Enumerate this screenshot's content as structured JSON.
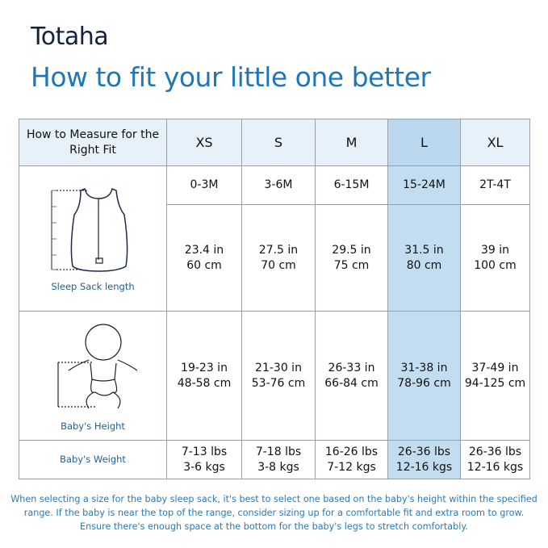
{
  "brand": "Totaha",
  "title": "How to fit your little one better",
  "table": {
    "header": [
      "How to Measure for the Right Fit",
      "XS",
      "S",
      "M",
      "L",
      "XL"
    ],
    "highlight_column": "L",
    "colors": {
      "header_bg": "#e6f1f9",
      "highlight": "#c3ddf0",
      "title": "#1f77b8"
    },
    "rows": [
      {
        "label": "",
        "cells": [
          [
            "0-3M"
          ],
          [
            "3-6M"
          ],
          [
            "6-15M"
          ],
          [
            "15-24M"
          ],
          [
            "2T-4T"
          ]
        ]
      },
      {
        "label": "Sleep Sack length",
        "icon": "sleep-sack-icon",
        "cells": [
          [
            "23.4 in",
            "60 cm"
          ],
          [
            "27.5 in",
            "70 cm"
          ],
          [
            "29.5 in",
            "75 cm"
          ],
          [
            "31.5 in",
            "80 cm"
          ],
          [
            "39 in",
            "100 cm"
          ]
        ]
      },
      {
        "label": "Baby's Height",
        "icon": "baby-icon",
        "cells": [
          [
            "19-23 in",
            "48-58 cm"
          ],
          [
            "21-30 in",
            "53-76 cm"
          ],
          [
            "26-33 in",
            "66-84 cm"
          ],
          [
            "31-38 in",
            "78-96 cm"
          ],
          [
            "37-49 in",
            "94-125 cm"
          ]
        ]
      },
      {
        "label": "Baby's Weight",
        "cells": [
          [
            "7-13 lbs",
            "3-6 kgs"
          ],
          [
            "7-18 lbs",
            "3-8 kgs"
          ],
          [
            "16-26 lbs",
            "7-12 kgs"
          ],
          [
            "26-36 lbs",
            "12-16 kgs"
          ],
          [
            "26-36 lbs",
            "12-16 kgs"
          ]
        ]
      }
    ]
  },
  "footer": [
    "When selecting a size for the baby sleep sack, it's best to select one based on the baby's height within the specified",
    "range. If the baby is near the top of the range, consider sizing up for a comfortable fit and extra room to grow.",
    "Ensure there's enough space at the bottom for the baby's legs to stretch comfortably."
  ]
}
